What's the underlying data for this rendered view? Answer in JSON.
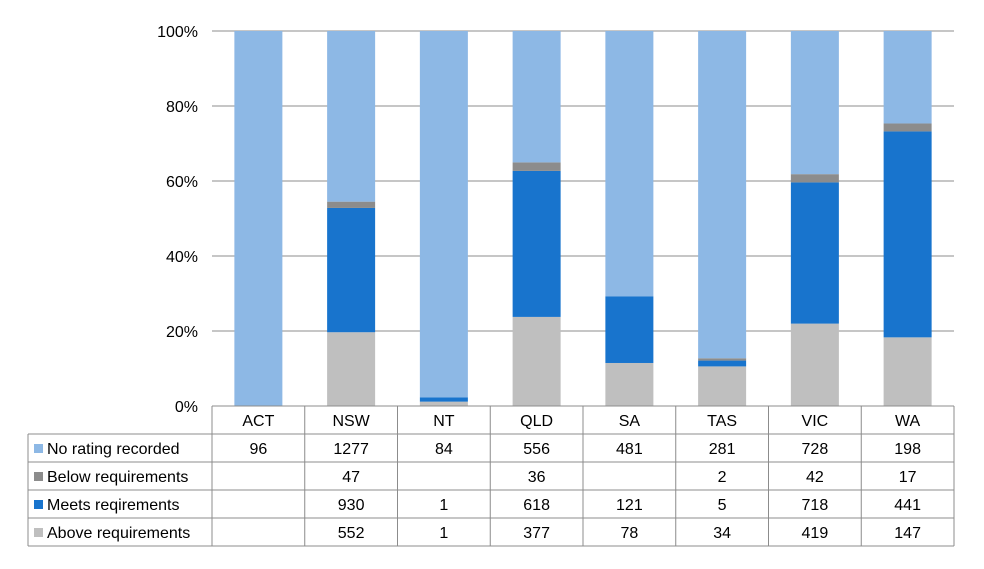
{
  "chart_data": {
    "type": "bar",
    "stacked": "percent",
    "categories": [
      "ACT",
      "NSW",
      "NT",
      "QLD",
      "SA",
      "TAS",
      "VIC",
      "WA"
    ],
    "ylim": [
      0,
      100
    ],
    "y_ticks": [
      "0%",
      "20%",
      "40%",
      "60%",
      "80%",
      "100%"
    ],
    "grid": true,
    "legend": "data-table",
    "series": [
      {
        "name": "Above requirements",
        "color": "#bfbfbf",
        "values": [
          null,
          552,
          1,
          377,
          78,
          34,
          419,
          147
        ]
      },
      {
        "name": "Meets reqirements",
        "color": "#1874cd",
        "values": [
          null,
          930,
          1,
          618,
          121,
          5,
          718,
          441
        ]
      },
      {
        "name": "Below requirements",
        "color": "#8c8c8c",
        "values": [
          null,
          47,
          null,
          36,
          null,
          2,
          42,
          17
        ]
      },
      {
        "name": "No rating recorded",
        "color": "#8db8e5",
        "values": [
          96,
          1277,
          84,
          556,
          481,
          281,
          728,
          198
        ]
      }
    ]
  }
}
